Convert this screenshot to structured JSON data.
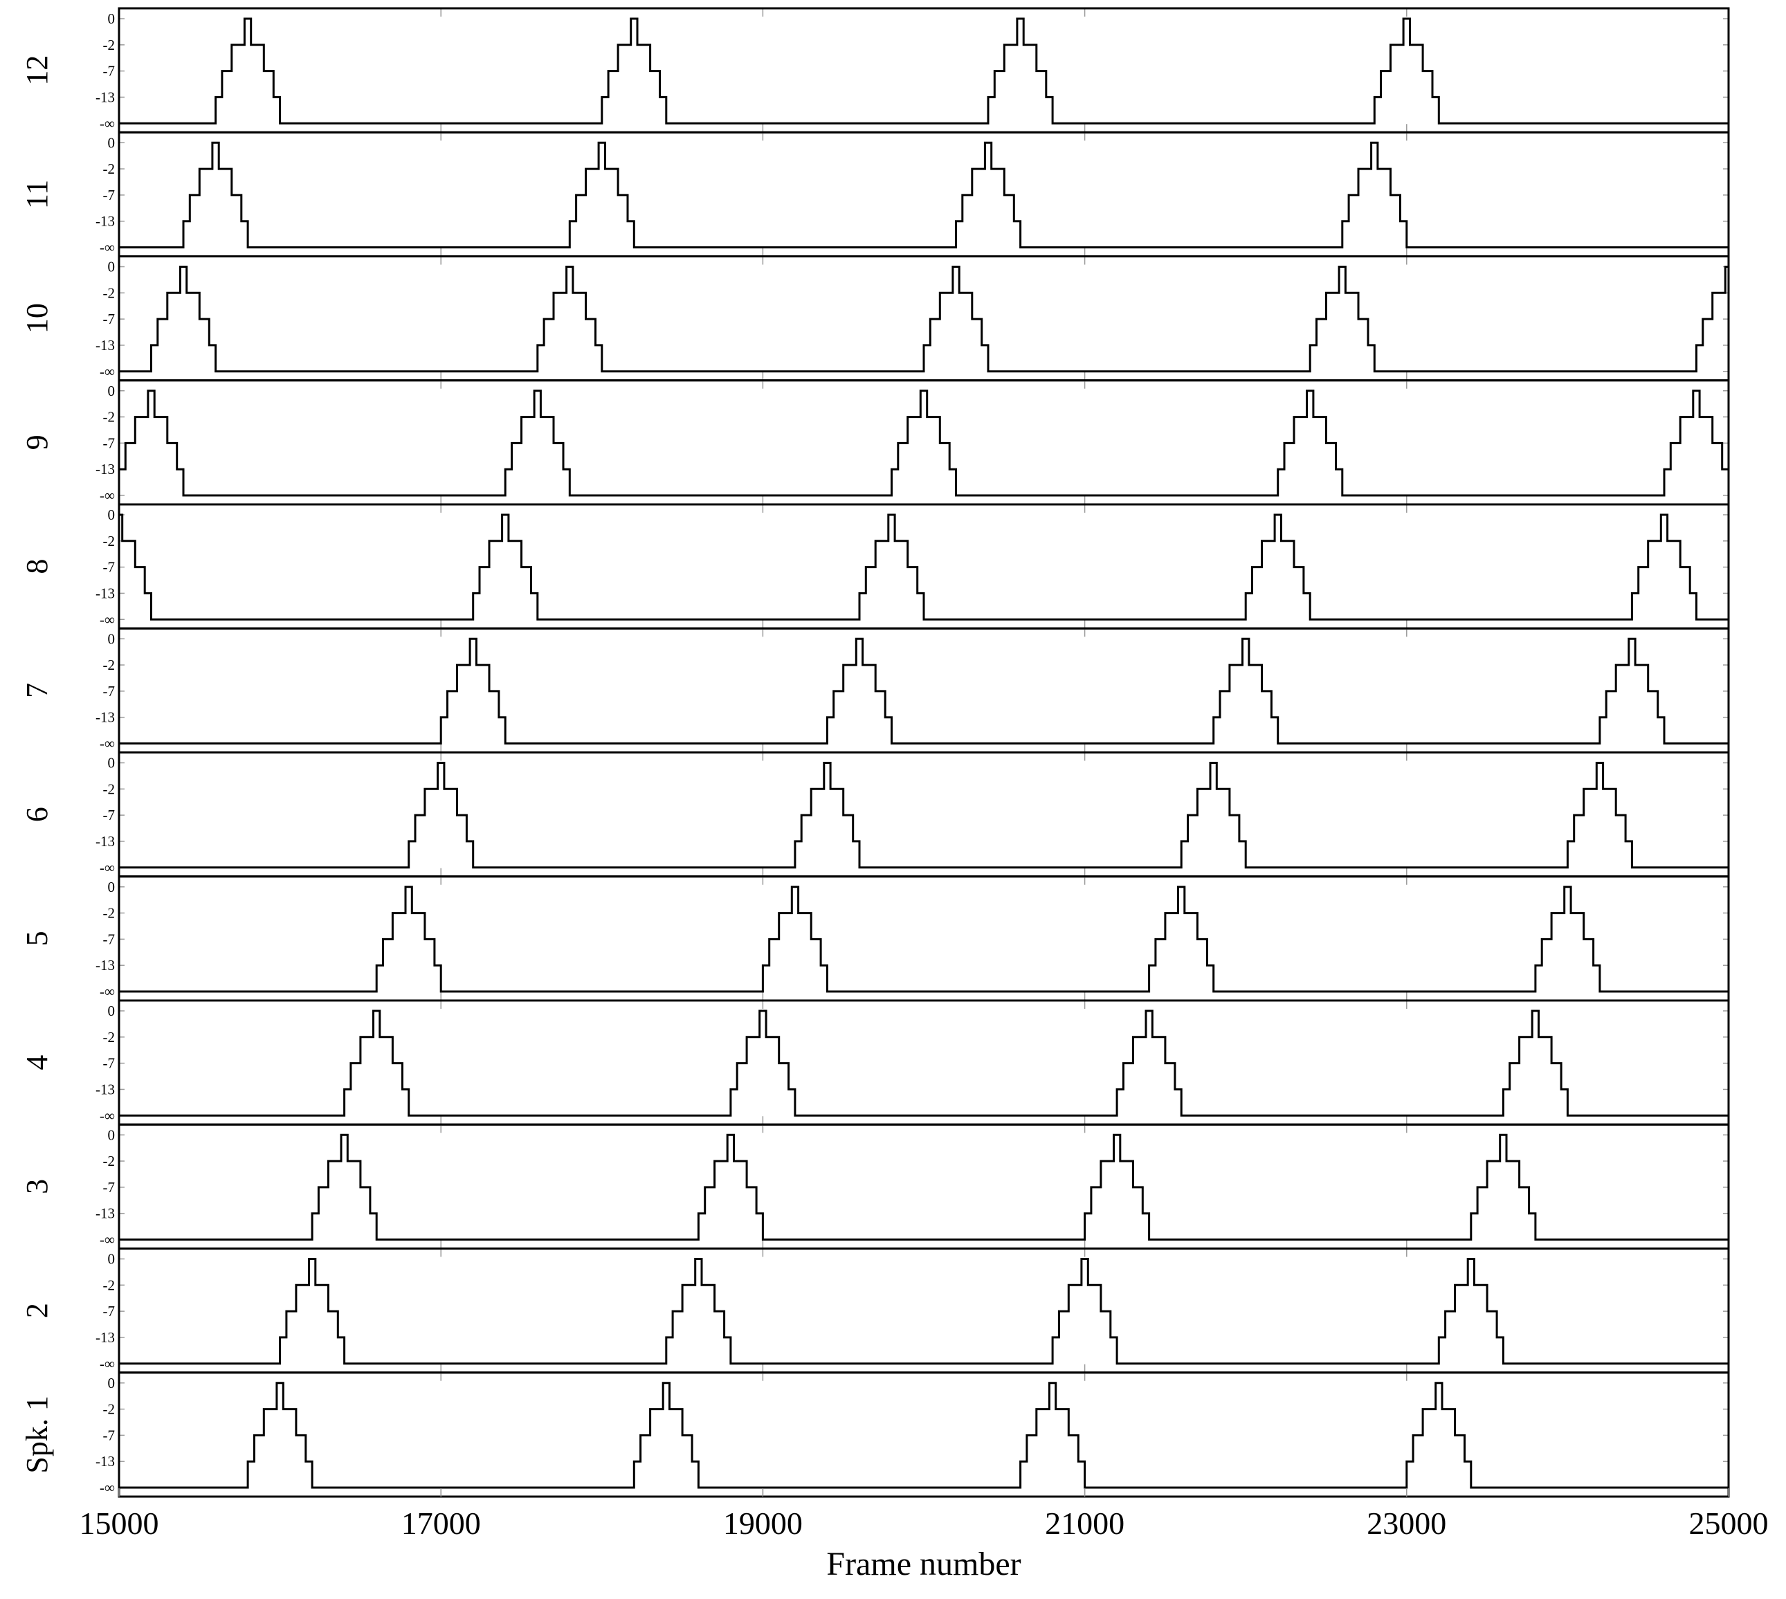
{
  "chart_data": {
    "type": "line",
    "xlabel": "Frame number",
    "xlim": [
      15000,
      25000
    ],
    "x_ticks": [
      "15000",
      "17000",
      "19000",
      "21000",
      "23000",
      "25000"
    ],
    "y_tick_labels": [
      "0",
      "-2",
      "-7",
      "-13",
      "-∞"
    ],
    "grid": "vertical at x ticks",
    "pulse_shape": {
      "description_levels": [
        "-∞",
        "-13",
        "-7",
        "-2",
        "0"
      ],
      "rise_offsets": [
        0,
        40,
        80,
        120,
        160,
        200,
        240,
        260
      ],
      "note": "each pulse is a symmetric staircase of width 400 frames centered at the listed peak"
    },
    "panels": [
      {
        "label": "12",
        "peaks": [
          15800,
          18200,
          20600,
          23000
        ]
      },
      {
        "label": "11",
        "peaks": [
          15600,
          18000,
          20400,
          22800
        ]
      },
      {
        "label": "10",
        "peaks": [
          15400,
          17800,
          20200,
          22600,
          25000
        ]
      },
      {
        "label": "9",
        "peaks": [
          15200,
          17600,
          20000,
          22400,
          24800
        ]
      },
      {
        "label": "8",
        "peaks": [
          15000,
          17400,
          19800,
          22200,
          24600
        ]
      },
      {
        "label": "7",
        "peaks": [
          17200,
          19600,
          22000,
          24400
        ]
      },
      {
        "label": "6",
        "peaks": [
          17000,
          19400,
          21800,
          24200
        ]
      },
      {
        "label": "5",
        "peaks": [
          16800,
          19200,
          21600,
          24000
        ]
      },
      {
        "label": "4",
        "peaks": [
          16600,
          19000,
          21400,
          23800
        ]
      },
      {
        "label": "3",
        "peaks": [
          16400,
          18800,
          21200,
          23600
        ]
      },
      {
        "label": "2",
        "peaks": [
          16200,
          18600,
          21000,
          23400
        ]
      },
      {
        "label": "Spk. 1",
        "peaks": [
          16000,
          18400,
          20800,
          23200
        ]
      }
    ]
  }
}
